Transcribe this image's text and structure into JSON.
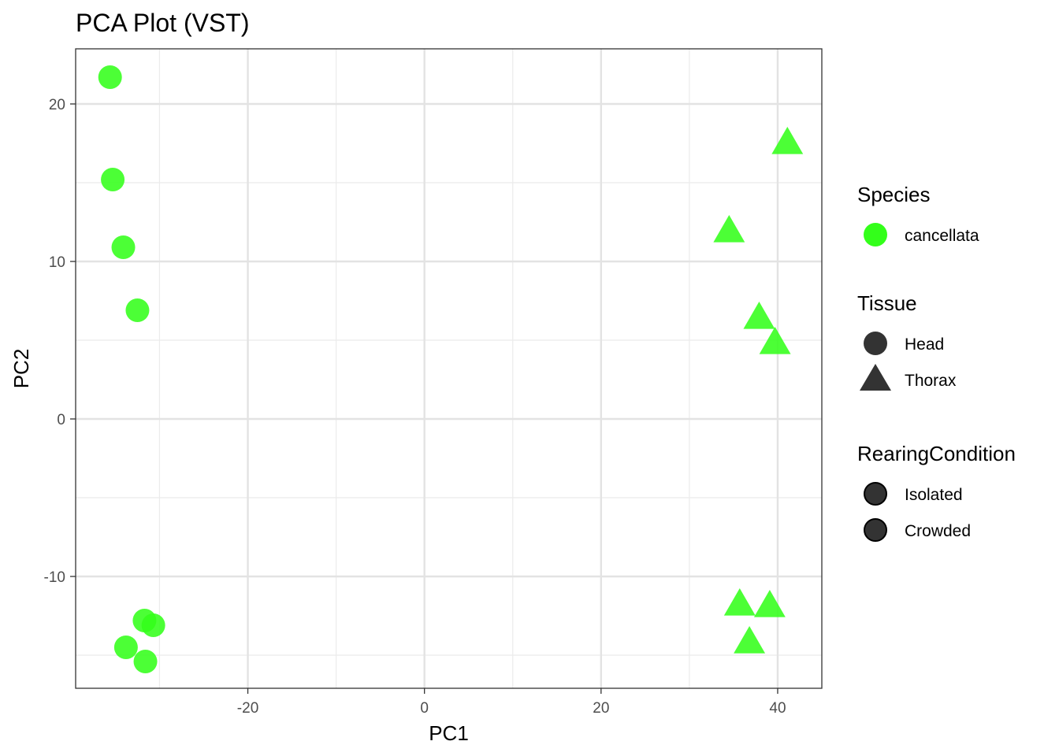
{
  "chart_data": {
    "type": "scatter",
    "title": "PCA Plot (VST)",
    "xlabel": "PC1",
    "ylabel": "PC2",
    "xlim": [
      -39.5,
      45.0
    ],
    "ylim": [
      -17.1,
      23.5
    ],
    "x_major_ticks": [
      -20,
      0,
      20,
      40
    ],
    "y_major_ticks": [
      -10,
      0,
      10,
      20
    ],
    "x_minor_ticks": [
      -30,
      -10,
      10,
      30
    ],
    "y_minor_ticks": [
      -15,
      -5,
      5,
      15
    ],
    "grid": true,
    "point_color": "#33ff1a",
    "points": [
      {
        "x": -35.6,
        "y": 21.7,
        "tissue": "Head"
      },
      {
        "x": -35.3,
        "y": 15.2,
        "tissue": "Head"
      },
      {
        "x": -34.1,
        "y": 10.9,
        "tissue": "Head"
      },
      {
        "x": -32.5,
        "y": 6.9,
        "tissue": "Head"
      },
      {
        "x": -31.7,
        "y": -12.8,
        "tissue": "Head"
      },
      {
        "x": -30.7,
        "y": -13.1,
        "tissue": "Head"
      },
      {
        "x": -33.8,
        "y": -14.5,
        "tissue": "Head"
      },
      {
        "x": -31.6,
        "y": -15.4,
        "tissue": "Head"
      },
      {
        "x": 41.1,
        "y": 17.5,
        "tissue": "Thorax"
      },
      {
        "x": 34.5,
        "y": 11.9,
        "tissue": "Thorax"
      },
      {
        "x": 37.9,
        "y": 6.4,
        "tissue": "Thorax"
      },
      {
        "x": 39.7,
        "y": 4.8,
        "tissue": "Thorax"
      },
      {
        "x": 35.7,
        "y": -11.8,
        "tissue": "Thorax"
      },
      {
        "x": 39.1,
        "y": -11.9,
        "tissue": "Thorax"
      },
      {
        "x": 36.8,
        "y": -14.2,
        "tissue": "Thorax"
      }
    ],
    "legend": {
      "placement": "right",
      "groups": [
        {
          "title": "Species",
          "items": [
            {
              "label": "cancellata",
              "shape": "circle",
              "color": "#33ff1a"
            }
          ]
        },
        {
          "title": "Tissue",
          "items": [
            {
              "label": "Head",
              "shape": "circle",
              "color": "#333333"
            },
            {
              "label": "Thorax",
              "shape": "triangle",
              "color": "#333333"
            }
          ]
        },
        {
          "title": "RearingCondition",
          "items": [
            {
              "label": "Isolated",
              "shape": "circle-outline",
              "color": "#333333"
            },
            {
              "label": "Crowded",
              "shape": "circle-outline",
              "color": "#333333"
            }
          ]
        }
      ]
    }
  }
}
